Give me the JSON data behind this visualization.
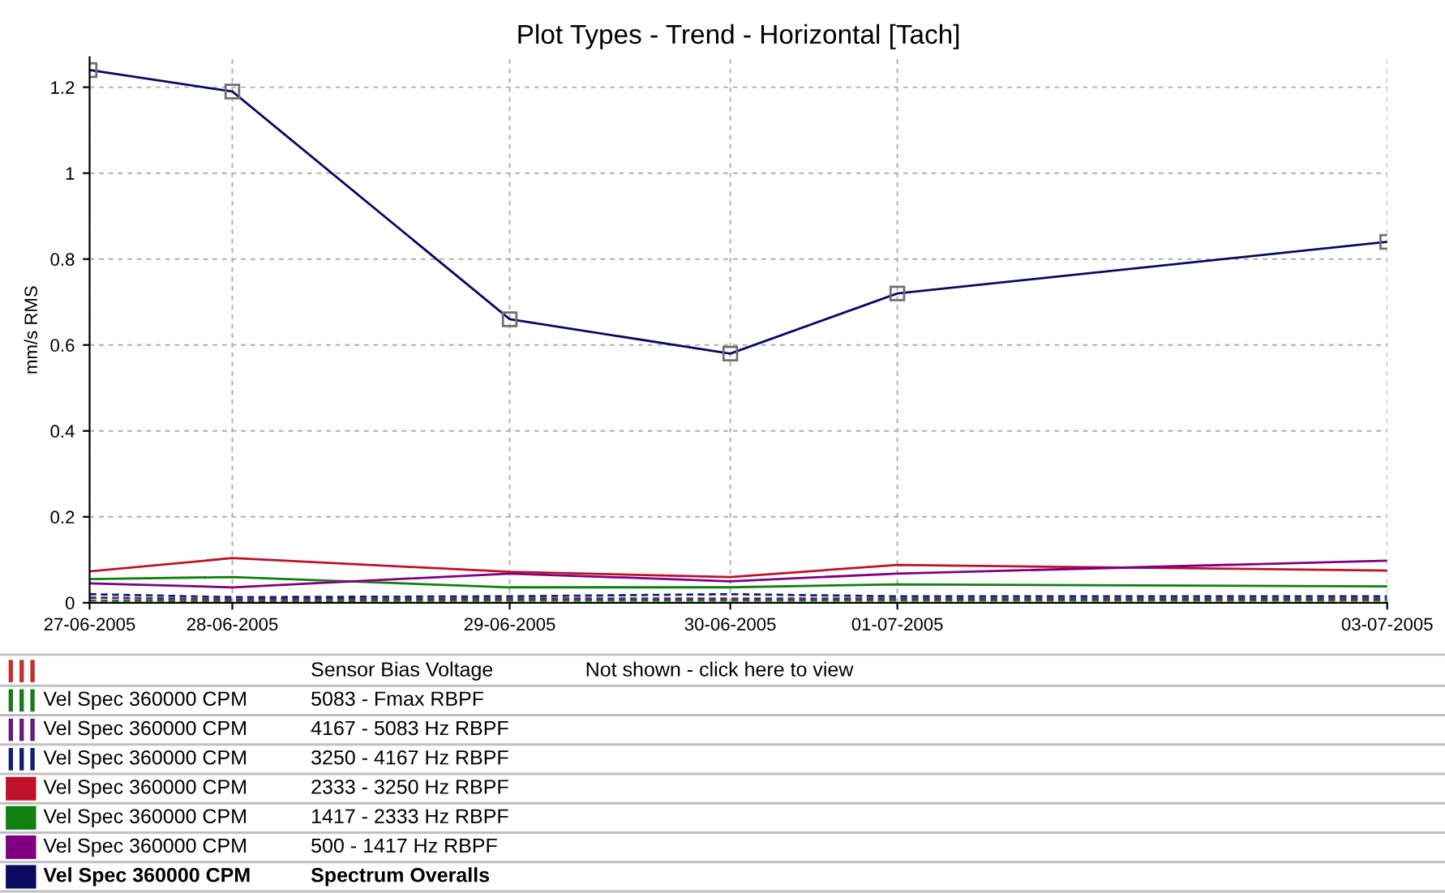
{
  "chart_data": {
    "type": "line",
    "title": "Plot Types - Trend - Horizontal [Tach]",
    "ylabel": "mm/s RMS",
    "x": [
      "2005-06-27T07:00",
      "2005-06-28T00:36",
      "2005-06-29T10:48",
      "2005-06-30T14:00",
      "2005-07-01T10:36",
      "2005-07-03T23:00"
    ],
    "xlim": [
      "2005-06-27T07:00",
      "2005-07-03T23:00"
    ],
    "xticks": [
      {
        "value": "2005-06-27T07:00",
        "label": "27-06-2005"
      },
      {
        "value": "2005-06-28T00:36",
        "label": "28-06-2005"
      },
      {
        "value": "2005-06-29T10:48",
        "label": "29-06-2005"
      },
      {
        "value": "2005-06-30T14:00",
        "label": "30-06-2005"
      },
      {
        "value": "2005-07-01T10:36",
        "label": "01-07-2005"
      },
      {
        "value": "2005-07-03T23:00",
        "label": "03-07-2005"
      }
    ],
    "ylim": [
      0,
      1.27
    ],
    "yticks": [
      0,
      0.2,
      0.4,
      0.6,
      0.8,
      1,
      1.2
    ],
    "grid": true,
    "legend": "bottom",
    "series": [
      {
        "name": "Vel Spec 360000 CPM",
        "color": "#1a7a1a",
        "line_style": "dashed",
        "values": [
          0.005,
          0.004,
          0.005,
          0.005,
          0.005,
          0.005
        ]
      },
      {
        "name": "Vel Spec 360000 CPM",
        "color": "#6a1a7a",
        "line_style": "dashed",
        "values": [
          0.012,
          0.008,
          0.01,
          0.01,
          0.01,
          0.01
        ]
      },
      {
        "name": "Vel Spec 360000 CPM",
        "color": "#10206a",
        "line_style": "dashed",
        "values": [
          0.02,
          0.013,
          0.015,
          0.02,
          0.015,
          0.015
        ]
      },
      {
        "name": "Vel Spec 360000 CPM",
        "color": "#c0102a",
        "line_style": "solid",
        "values": [
          0.073,
          0.104,
          0.072,
          0.06,
          0.088,
          0.075
        ]
      },
      {
        "name": "Vel Spec 360000 CPM",
        "color": "#108010",
        "line_style": "solid",
        "values": [
          0.055,
          0.06,
          0.036,
          0.036,
          0.043,
          0.038
        ]
      },
      {
        "name": "Vel Spec 360000 CPM",
        "color": "#800080",
        "line_style": "solid",
        "values": [
          0.045,
          0.036,
          0.068,
          0.05,
          0.068,
          0.098
        ]
      },
      {
        "name": "Vel Spec 360000 CPM",
        "color": "#0a0a60",
        "line_style": "solid",
        "marker": "square",
        "values": [
          1.24,
          1.19,
          0.66,
          0.58,
          0.72,
          0.84
        ]
      }
    ],
    "annotations": [
      "Sensor Bias Voltage",
      "Not shown - click here to view",
      "5083 - Fmax RBPF",
      "4167 - 5083 Hz RBPF",
      "3250 - 4167 Hz RBPF",
      "2333 - 3250 Hz RBPF",
      "1417 - 2333 Hz RBPF",
      "500 - 1417 Hz RBPF",
      "Spectrum Overalls"
    ]
  }
}
